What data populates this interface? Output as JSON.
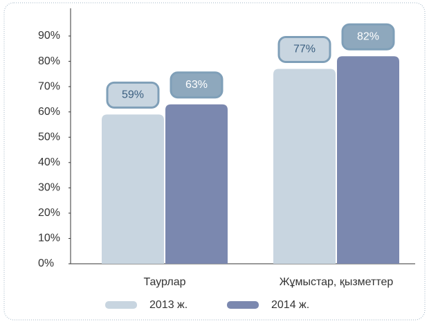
{
  "chart_data": {
    "type": "bar",
    "categories": [
      "Таурлар",
      "Жұмыстар, қызметтер"
    ],
    "series": [
      {
        "name": "2013 ж.",
        "color": "#c8d5e0",
        "values": [
          59,
          77
        ],
        "value_labels": [
          "59%",
          "77%"
        ]
      },
      {
        "name": "2014 ж.",
        "color": "#7b88af",
        "values": [
          63,
          82
        ],
        "value_labels": [
          "63%",
          "82%"
        ]
      }
    ],
    "ylim": [
      0,
      90
    ],
    "yticks": [
      {
        "value": 0,
        "label": "0%"
      },
      {
        "value": 10,
        "label": "10%"
      },
      {
        "value": 20,
        "label": "20%"
      },
      {
        "value": 30,
        "label": "30%"
      },
      {
        "value": 40,
        "label": "40%"
      },
      {
        "value": 50,
        "label": "50%"
      },
      {
        "value": 60,
        "label": "60%"
      },
      {
        "value": 70,
        "label": "70%"
      },
      {
        "value": 80,
        "label": "80%"
      },
      {
        "value": 90,
        "label": "90%"
      }
    ],
    "legend": "bottom"
  }
}
